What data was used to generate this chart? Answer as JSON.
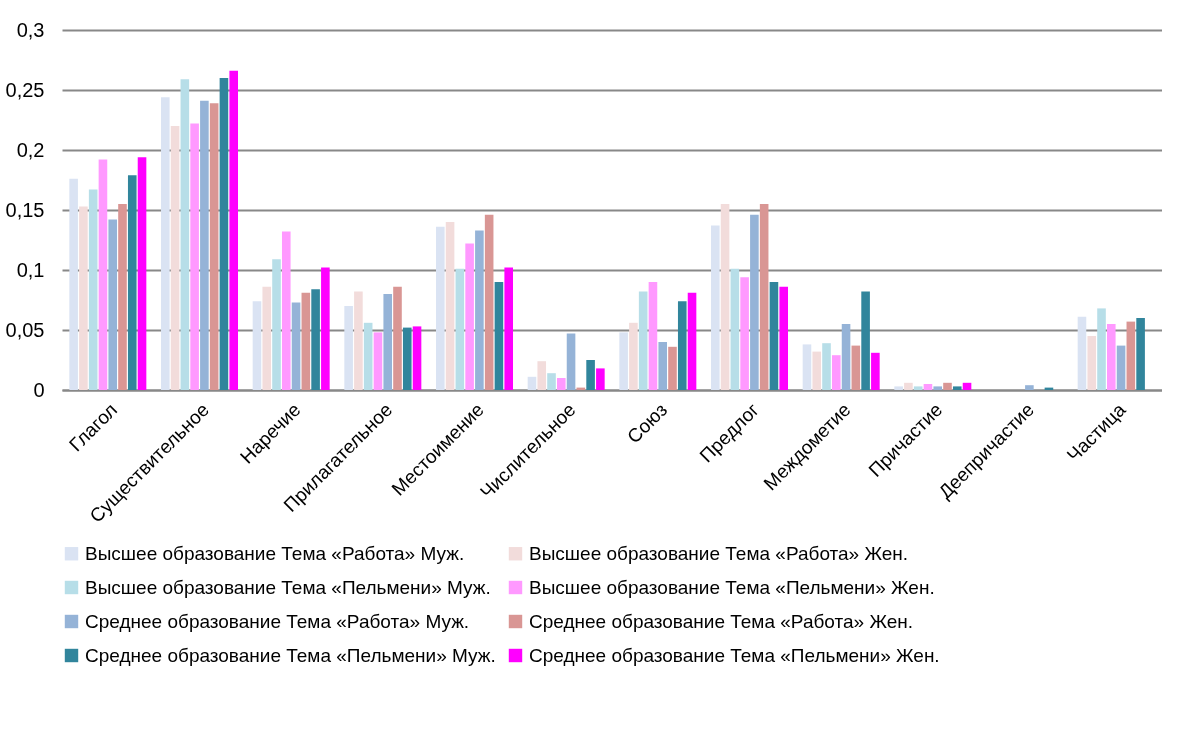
{
  "chart_data": {
    "type": "bar",
    "categories": [
      "Глагол",
      "Существительное",
      "Наречие",
      "Прилагательное",
      "Местоимение",
      "Числительное",
      "Союз",
      "Предлог",
      "Междометие",
      "Причастие",
      "Деепричастие",
      "Частица"
    ],
    "series": [
      {
        "name": "Высшее образование Тема «Работа» Муж.",
        "color": "#dae3f3",
        "values": [
          0.176,
          0.244,
          0.074,
          0.07,
          0.136,
          0.011,
          0.048,
          0.137,
          0.038,
          0.003,
          0,
          0.061
        ]
      },
      {
        "name": "Высшее образование Тема «Работа» Жен.",
        "color": "#f2dcdb",
        "values": [
          0.153,
          0.22,
          0.086,
          0.082,
          0.14,
          0.024,
          0.056,
          0.155,
          0.032,
          0.006,
          0,
          0.045
        ]
      },
      {
        "name": "Высшее образование Тема «Пельмени» Муж.",
        "color": "#b7dee8",
        "values": [
          0.167,
          0.259,
          0.109,
          0.056,
          0.101,
          0.014,
          0.082,
          0.101,
          0.039,
          0.003,
          0,
          0.068
        ]
      },
      {
        "name": "Высшее образование Тема «Пельмени» Жен.",
        "color": "#ff99ff",
        "values": [
          0.192,
          0.222,
          0.132,
          0.048,
          0.122,
          0.01,
          0.09,
          0.094,
          0.029,
          0.005,
          0,
          0.055
        ]
      },
      {
        "name": "Среднее образование Тема «Работа» Муж.",
        "color": "#95b3d7",
        "values": [
          0.142,
          0.241,
          0.073,
          0.08,
          0.133,
          0.047,
          0.04,
          0.146,
          0.055,
          0.003,
          0.004,
          0.037
        ]
      },
      {
        "name": "Среднее образование Тема «Работа» Жен.",
        "color": "#d99694",
        "values": [
          0.155,
          0.239,
          0.081,
          0.086,
          0.146,
          0.002,
          0.036,
          0.155,
          0.037,
          0.006,
          0,
          0.057
        ]
      },
      {
        "name": "Среднее образование Тема «Пельмени» Муж.",
        "color": "#31859c",
        "values": [
          0.179,
          0.26,
          0.084,
          0.052,
          0.09,
          0.025,
          0.074,
          0.09,
          0.082,
          0.003,
          0.002,
          0.06
        ]
      },
      {
        "name": "Среднее образование Тема «Пельмени» Жен.",
        "color": "#ff00ff",
        "values": [
          0.194,
          0.266,
          0.102,
          0.053,
          0.102,
          0.018,
          0.081,
          0.086,
          0.031,
          0.006,
          0,
          null
        ]
      }
    ],
    "ylim": [
      0,
      0.3
    ],
    "yticks": [
      {
        "value": 0,
        "label": "0"
      },
      {
        "value": 0.05,
        "label": "0,05"
      },
      {
        "value": 0.1,
        "label": "0,1"
      },
      {
        "value": 0.15,
        "label": "0,15"
      },
      {
        "value": 0.2,
        "label": "0,2"
      },
      {
        "value": 0.25,
        "label": "0,25"
      },
      {
        "value": 0.3,
        "label": "0,3"
      }
    ],
    "grid": "y",
    "legend": "bottom"
  }
}
